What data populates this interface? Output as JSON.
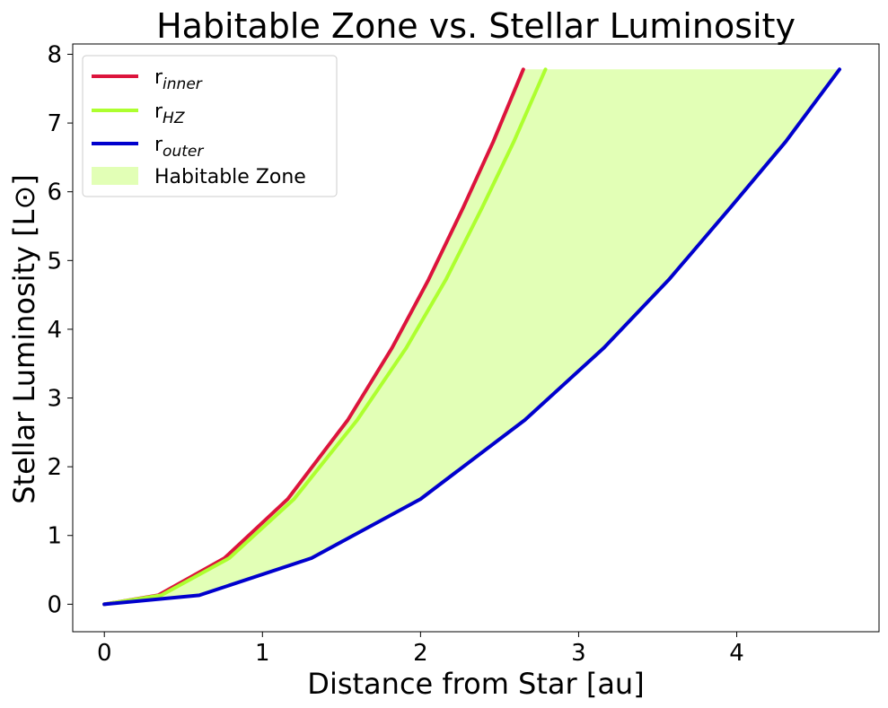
{
  "chart_data": {
    "type": "line",
    "title": "Habitable Zone vs. Stellar Luminosity",
    "xlabel": "Distance from Star [au]",
    "ylabel": "Stellar Luminosity [L⊙]",
    "xlim": [
      -0.2,
      4.9
    ],
    "ylim": [
      -0.4,
      8.15
    ],
    "xticks": [
      0,
      1,
      2,
      3,
      4
    ],
    "yticks": [
      0,
      1,
      2,
      3,
      4,
      5,
      6,
      7,
      8
    ],
    "grid": false,
    "legend_position": "top-left",
    "series": [
      {
        "name": "r_inner",
        "legend_base": "r",
        "legend_sub": "inner",
        "color": "#dc143c",
        "x": [
          0.0,
          0.34,
          0.76,
          1.16,
          1.54,
          1.82,
          2.05,
          2.27,
          2.46,
          2.65
        ],
        "y": [
          0.0,
          0.13,
          0.67,
          1.53,
          2.68,
          3.73,
          4.72,
          5.77,
          6.73,
          7.78
        ]
      },
      {
        "name": "r_HZ",
        "legend_base": "r",
        "legend_sub": "HZ",
        "color": "#adff2f",
        "x": [
          0.0,
          0.36,
          0.79,
          1.2,
          1.6,
          1.91,
          2.16,
          2.39,
          2.59,
          2.79
        ],
        "y": [
          0.0,
          0.13,
          0.67,
          1.53,
          2.68,
          3.73,
          4.72,
          5.77,
          6.73,
          7.78
        ]
      },
      {
        "name": "r_outer",
        "legend_base": "r",
        "legend_sub": "outer",
        "color": "#0000cd",
        "x": [
          0.0,
          0.6,
          1.31,
          2.0,
          2.66,
          3.16,
          3.57,
          3.96,
          4.31,
          4.65
        ],
        "y": [
          0.0,
          0.13,
          0.67,
          1.53,
          2.68,
          3.73,
          4.72,
          5.77,
          6.73,
          7.78
        ]
      }
    ],
    "fill": {
      "name": "Habitable Zone",
      "color": "#adff2f",
      "opacity": 0.35,
      "between": [
        "r_inner",
        "r_outer"
      ]
    }
  }
}
